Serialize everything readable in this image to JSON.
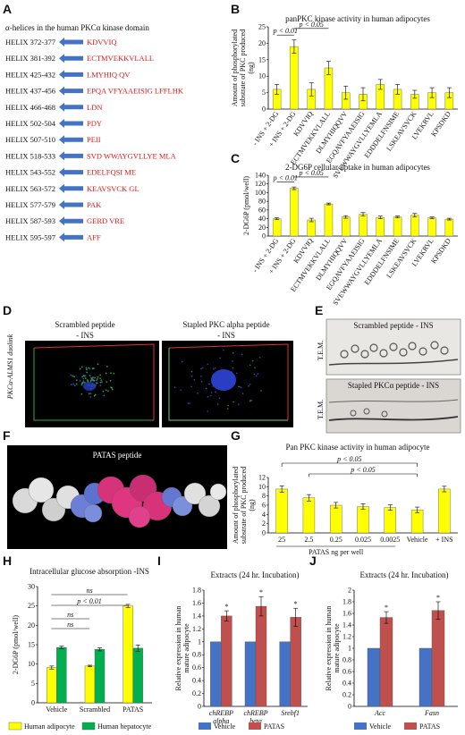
{
  "panel_letters": [
    "A",
    "B",
    "C",
    "D",
    "E",
    "F",
    "G",
    "H",
    "I",
    "J"
  ],
  "panel_a": {
    "title": "α-helices in the human PKCα kinase domain",
    "helices": [
      {
        "label": "HELIX 372-377",
        "seq": "KDVVIQ"
      },
      {
        "label": "HELIX 381-392",
        "seq": "ECTMVEKKVLALL"
      },
      {
        "label": "HELIX 425-432",
        "seq": "LMYHIQ QV"
      },
      {
        "label": "HELIX 437-456",
        "seq": "EPQA VFYAAEISIG LFFLHK"
      },
      {
        "label": "HELIX 466-468",
        "seq": "LDN"
      },
      {
        "label": "HELIX 502-504",
        "seq": "PDY"
      },
      {
        "label": "HELIX 507-510",
        "seq": "PEII"
      },
      {
        "label": "HELIX 518-533",
        "seq": "SVD WWAYGVLLYE MLA"
      },
      {
        "label": "HELIX 543-552",
        "seq": "EDELFQSI ME"
      },
      {
        "label": "HELIX 563-572",
        "seq": "KEAVSVCK GL"
      },
      {
        "label": "HELIX 577-579",
        "seq": "PAK"
      },
      {
        "label": "HELIX 587-593",
        "seq": "GERD VRE"
      },
      {
        "label": "HELIX 595-597",
        "seq": "AFF"
      }
    ],
    "arrow_color": "#4472c4"
  },
  "panel_d": {
    "left_title": "Scrambled peptide",
    "left_sub": "- INS",
    "right_title": "Stapled PKC alpha peptide",
    "right_sub": "- INS",
    "ylabel": "PKCα-ALMS1 duolink"
  },
  "panel_e": {
    "top_title": "Scrambled peptide - INS",
    "bottom_title": "Stapled PKCα peptide - INS",
    "side_label": "T.E.M."
  },
  "panel_f": {
    "title": "PATAS peptide"
  },
  "colors": {
    "yellow": "#ffff00",
    "green": "#00b050",
    "blue": "#4472c4",
    "red": "#c0504d"
  },
  "chart_data": [
    {
      "id": "B",
      "type": "bar",
      "title": "panPKC kinase activity in human adipocytes",
      "ylabel": "Amount of phosphorylated substrate of PKC produced (ng)",
      "categories": [
        "- INS + 2-DG",
        "+ INS + 2-DG",
        "KDVVIQ",
        "ECTMVEKKVLALL",
        "DLMYHIQQVV",
        "EGQAVFYAAEISIG",
        "SVEWWAYGVLLYEMLA",
        "EDDDELFNSIME",
        "LSKEAVSVCK",
        "LVEKRVL",
        "KPSDKD"
      ],
      "values": [
        6,
        19,
        6,
        12.5,
        5,
        4.5,
        7.5,
        6,
        4.5,
        5,
        5
      ],
      "errors": [
        1.5,
        2,
        2,
        2,
        2,
        2,
        1.5,
        1.5,
        1.2,
        1.5,
        1.5
      ],
      "ylim": [
        0,
        25
      ],
      "yticks": [
        0,
        5,
        10,
        15,
        20,
        25
      ],
      "significance": [
        {
          "text": "p < 0.01",
          "from": 0,
          "to": 1
        },
        {
          "text": "p < 0.05",
          "from": 1,
          "to": 3
        }
      ]
    },
    {
      "id": "C",
      "type": "bar",
      "title": "2-DG6P cellular uptake in human adipocytes",
      "ylabel": "2-DG6P (pmol/well)",
      "categories": [
        "- INS + 2-DG",
        "+ INS + 2-DG",
        "KDVVIQ",
        "ECTMVEKKVLALL",
        "DLMYHIQQVV",
        "EGQAVFYAAEISIG",
        "SVEWWAYGVLLYEMLA",
        "EDDDELFNSIME",
        "LSKEAVSVCK",
        "LVEKRVL",
        "KPSDKD"
      ],
      "values": [
        40,
        110,
        37,
        74,
        44,
        50,
        43,
        44,
        48,
        42,
        39
      ],
      "errors": [
        2,
        3,
        4,
        2,
        3,
        4,
        3,
        2,
        4,
        2,
        2
      ],
      "ylim": [
        0,
        140
      ],
      "yticks": [
        0,
        20,
        40,
        60,
        80,
        100,
        120,
        140
      ],
      "significance": [
        {
          "text": "p < 0.01",
          "from": 0,
          "to": 1
        },
        {
          "text": "p < 0.05",
          "from": 1,
          "to": 3
        }
      ]
    },
    {
      "id": "G",
      "type": "bar",
      "title": "Pan PKC kinase activity in human adipocyte",
      "ylabel": "Amount of phosphorylated substrate of PKC produced (ng)",
      "categories": [
        "25",
        "2.5",
        "0.25",
        "0.025",
        "0.0025",
        "Vehicle",
        "+ INS"
      ],
      "xlabel": "PATAS ng per well",
      "values": [
        9.5,
        7.6,
        6,
        5.7,
        5.5,
        5,
        9.5
      ],
      "errors": [
        0.7,
        0.7,
        0.6,
        0.6,
        0.6,
        0.6,
        0.6
      ],
      "ylim": [
        0,
        12
      ],
      "yticks": [
        0,
        2,
        4,
        6,
        8,
        10,
        12
      ],
      "significance": [
        {
          "text": "p < 0.05",
          "from": 0,
          "to": 5
        },
        {
          "text": "p < 0.05",
          "from": 1,
          "to": 5
        }
      ]
    },
    {
      "id": "H",
      "type": "bar",
      "title": "Intracellular glucose absorption -INS",
      "ylabel": "2-DG6P (pmol/well)",
      "categories": [
        "Vehicle",
        "Scrambled",
        "PATAS"
      ],
      "series": [
        {
          "name": "Human adipocyte",
          "values": [
            9.1,
            9.5,
            25
          ],
          "errors": [
            0.4,
            0.2,
            0.4
          ]
        },
        {
          "name": "Human hepatocyte",
          "values": [
            14.3,
            13.8,
            14.1
          ],
          "errors": [
            0.3,
            0.4,
            0.8
          ]
        }
      ],
      "ylim": [
        0,
        30
      ],
      "yticks": [
        0,
        5,
        10,
        15,
        20,
        25,
        30
      ],
      "significance": [
        {
          "text": "ns",
          "from": 0,
          "to": 2
        },
        {
          "text": "p < 0.01",
          "from": 0,
          "to": 2
        },
        {
          "text": "ns",
          "from": 0,
          "to": 1
        },
        {
          "text": "ns",
          "from": 0,
          "to": 1
        }
      ]
    },
    {
      "id": "I",
      "type": "bar",
      "title": "Extracts (24 hr. Incubation)",
      "ylabel": "Relative expression in human mature adipocyte",
      "categories": [
        "chREBP alpha",
        "chREBP beta",
        "Srebf1"
      ],
      "series": [
        {
          "name": "Vehicle",
          "values": [
            1,
            1,
            1
          ],
          "errors": [
            0,
            0,
            0
          ]
        },
        {
          "name": "PATAS",
          "values": [
            1.4,
            1.55,
            1.38
          ],
          "errors": [
            0.08,
            0.15,
            0.14
          ]
        }
      ],
      "ylim": [
        0,
        1.8
      ],
      "yticks": [
        0,
        0.2,
        0.4,
        0.6,
        0.8,
        1,
        1.2,
        1.4,
        1.6,
        1.8
      ],
      "significance": [
        {
          "text": "*",
          "at": 0
        },
        {
          "text": "*",
          "at": 1
        },
        {
          "text": "*",
          "at": 2
        }
      ]
    },
    {
      "id": "J",
      "type": "bar",
      "title": "Extracts (24 hr. Incubation)",
      "ylabel": "Relative expression in human mature adipocyte",
      "categories": [
        "Acc",
        "Fasn"
      ],
      "series": [
        {
          "name": "Vehicle",
          "values": [
            1,
            1
          ],
          "errors": [
            0,
            0
          ]
        },
        {
          "name": "PATAS",
          "values": [
            1.53,
            1.65
          ],
          "errors": [
            0.1,
            0.15
          ]
        }
      ],
      "ylim": [
        0,
        2
      ],
      "yticks": [
        0,
        0.2,
        0.4,
        0.6,
        0.8,
        1,
        1.2,
        1.4,
        1.6,
        1.8,
        2
      ],
      "significance": [
        {
          "text": "*",
          "at": 0
        },
        {
          "text": "*",
          "at": 1
        }
      ]
    }
  ]
}
